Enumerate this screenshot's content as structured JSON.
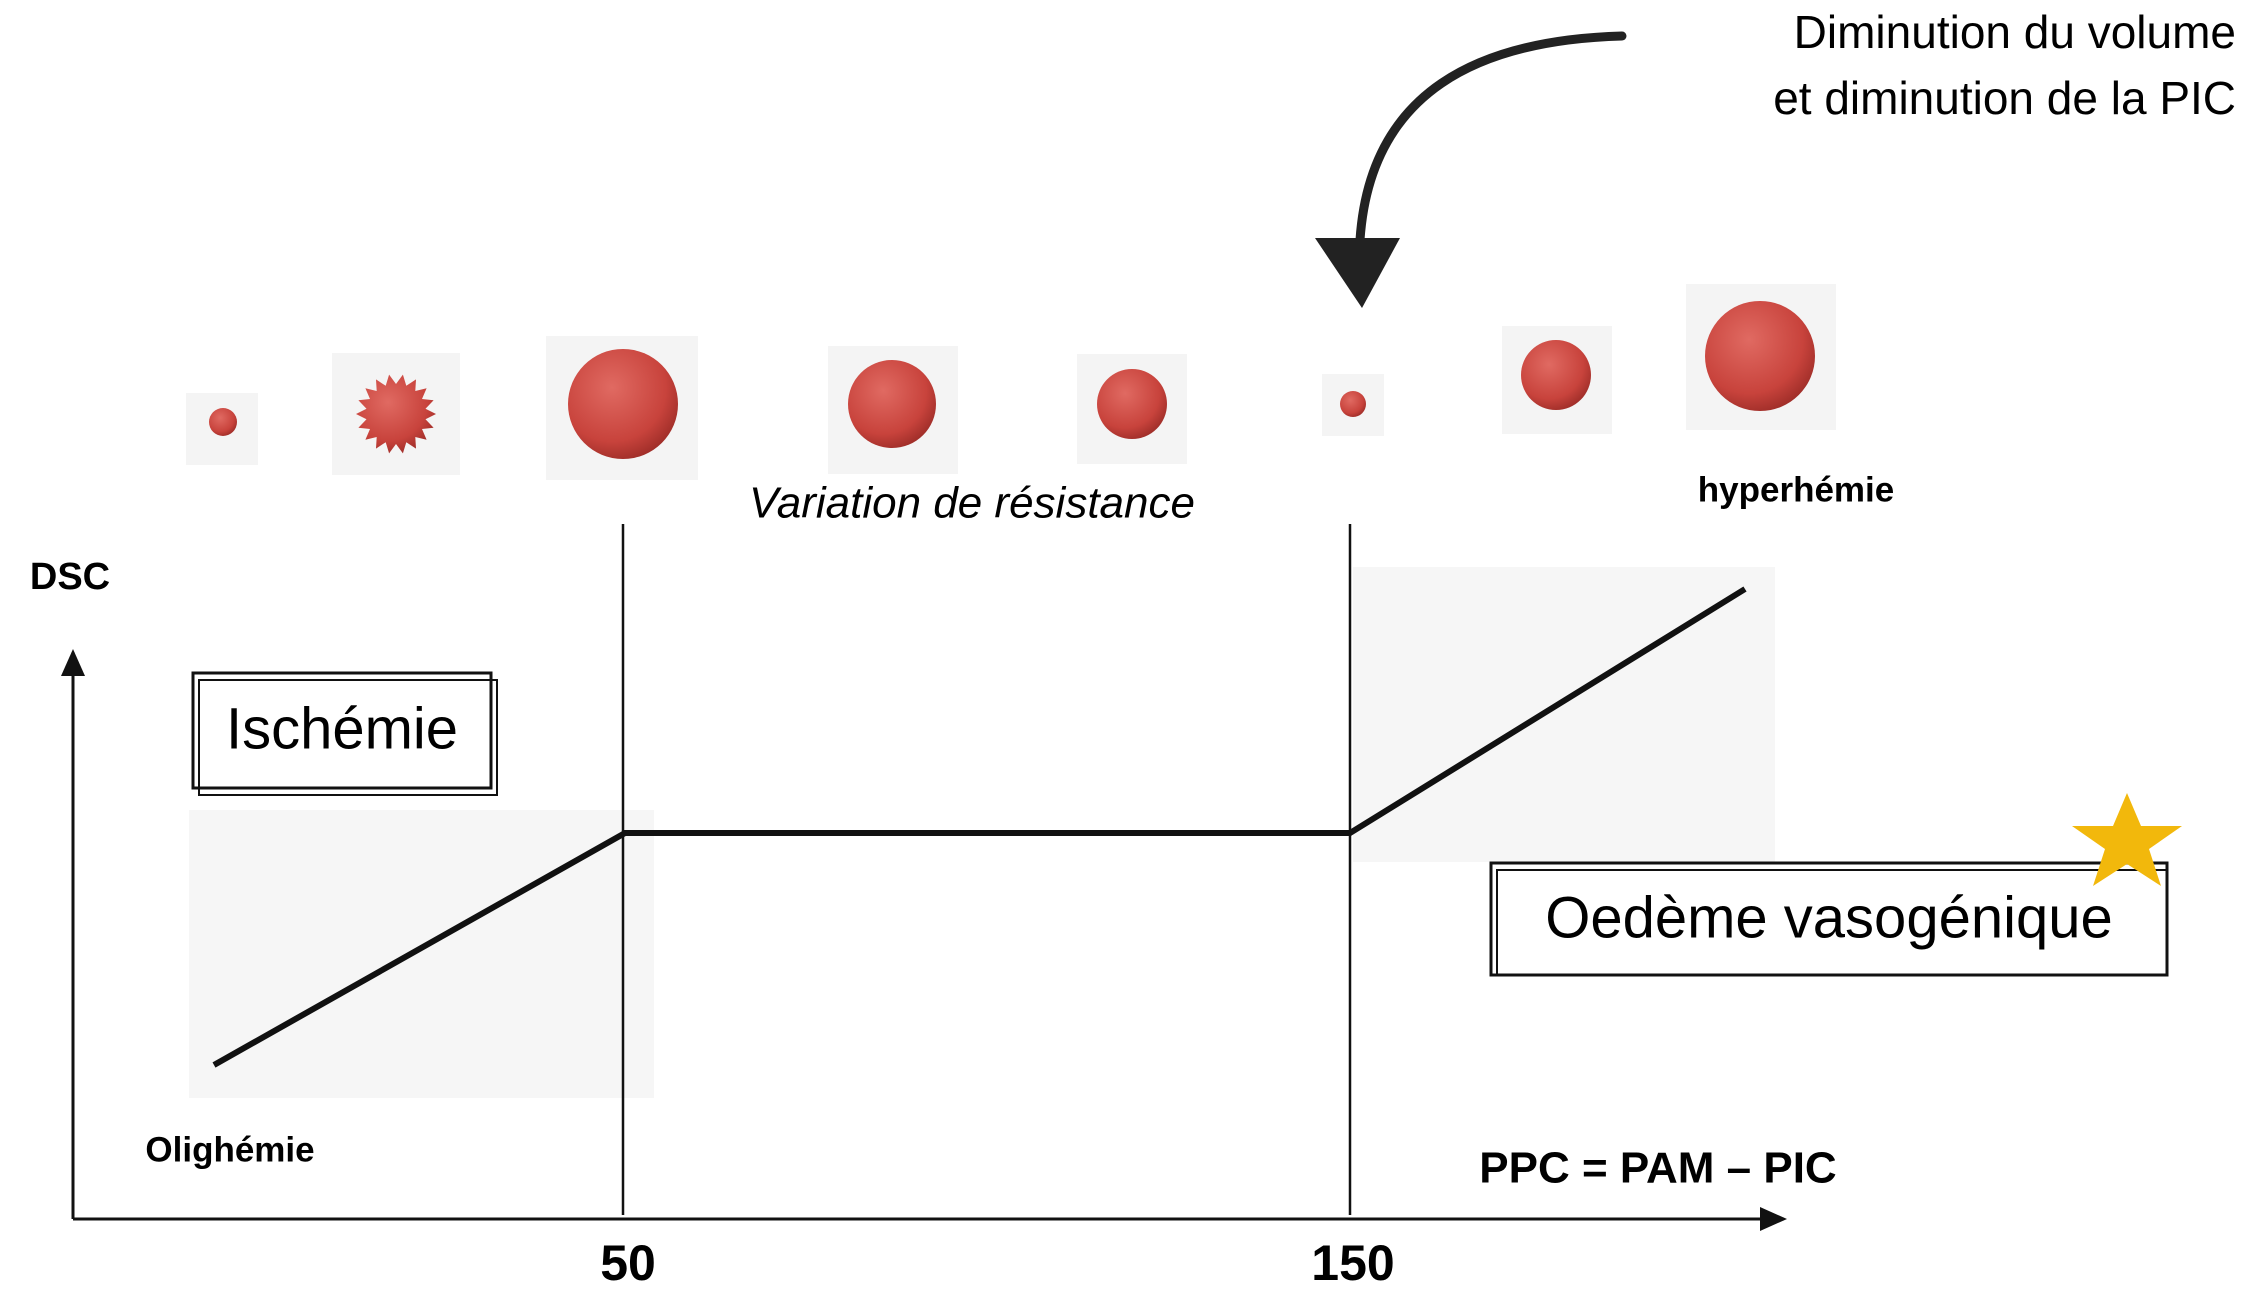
{
  "annotation": {
    "lines": [
      "Diminution du volume",
      "et diminution de la PIC"
    ]
  },
  "top_label": "Variation de résistance",
  "hyperemia_label": "hyperhémie",
  "y_axis_label": "DSC",
  "x_axis_label": "PPC = PAM – PIC",
  "x_ticks": [
    "50",
    "150"
  ],
  "boxes": {
    "ischemia": "Ischémie",
    "edema": "Oedème vasogénique"
  },
  "low_label": "Olighémie"
}
